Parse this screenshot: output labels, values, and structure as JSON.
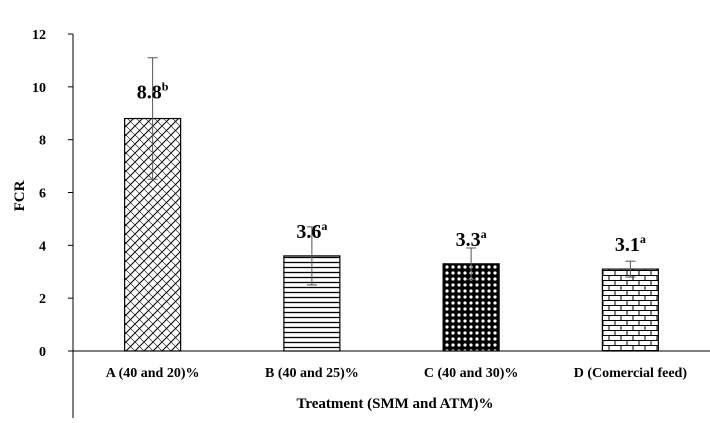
{
  "chart_data": {
    "type": "bar",
    "categories": [
      "A (40 and 20)%",
      "B (40 and 25)%",
      "C (40 and 30)%",
      "D (Comercial feed)"
    ],
    "values": [
      8.8,
      3.6,
      3.3,
      3.1
    ],
    "errors": [
      2.3,
      1.1,
      0.6,
      0.3
    ],
    "value_labels": [
      "8.8",
      "3.6",
      "3.3",
      "3.1"
    ],
    "significance": [
      "b",
      "a",
      "a",
      "a"
    ],
    "patterns": [
      "diagonal-crosshatch",
      "horizontal-lines",
      "dots",
      "brick"
    ],
    "xlabel": "Treatment (SMM and ATM)%",
    "ylabel": "FCR",
    "ylim": [
      0,
      12
    ],
    "yticks": [
      "0",
      "2",
      "4",
      "6",
      "8",
      "10",
      "12"
    ],
    "grid": false,
    "legend": "none",
    "bar_color": "#000000",
    "background": "#ffffff"
  }
}
